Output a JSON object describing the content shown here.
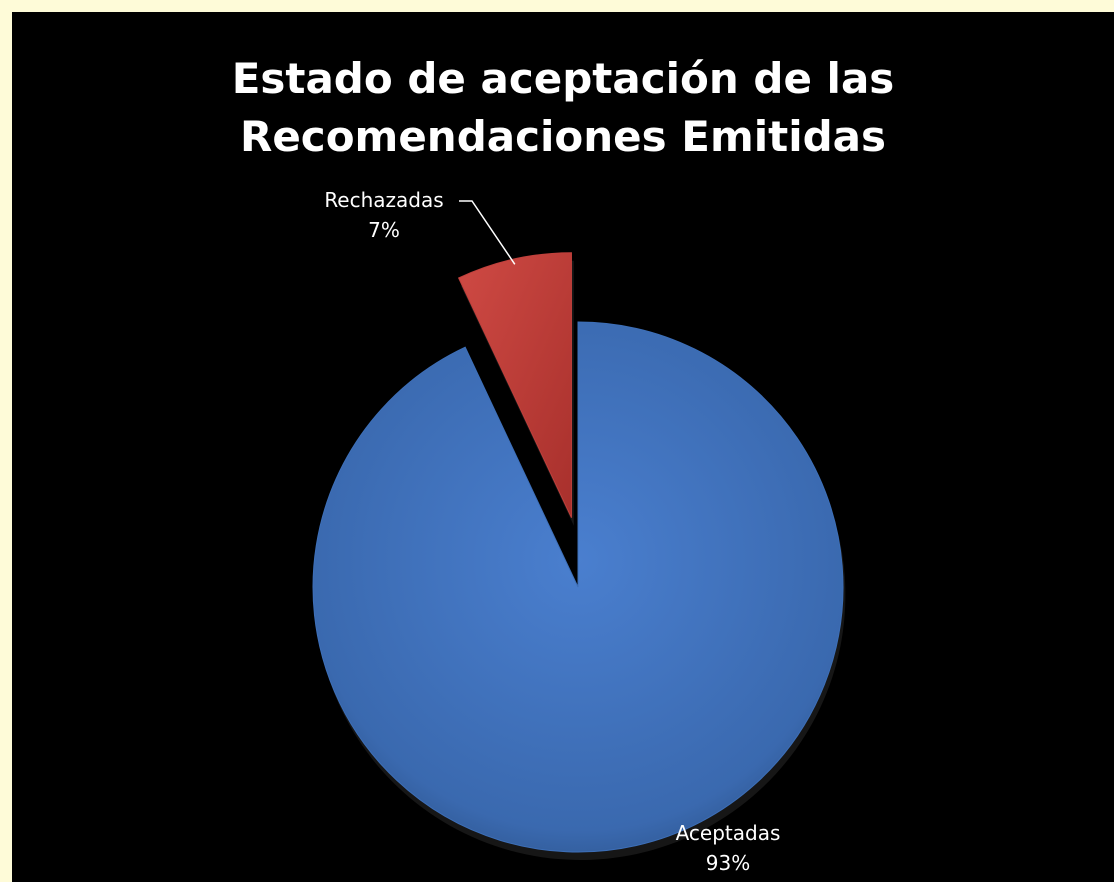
{
  "chart_data": {
    "type": "pie",
    "title": [
      "Estado de aceptación de las",
      "Recomendaciones Emitidas"
    ],
    "slices": [
      {
        "label": "Aceptadas",
        "percent_label": "93%",
        "value": 93,
        "color": "#3d6fb8",
        "exploded": false
      },
      {
        "label": "Rechazadas",
        "percent_label": "7%",
        "value": 7,
        "color": "#c0403c",
        "exploded": true
      }
    ],
    "legend": "none",
    "background": "#000000"
  },
  "page": {
    "border_color": "#fefbd8"
  }
}
